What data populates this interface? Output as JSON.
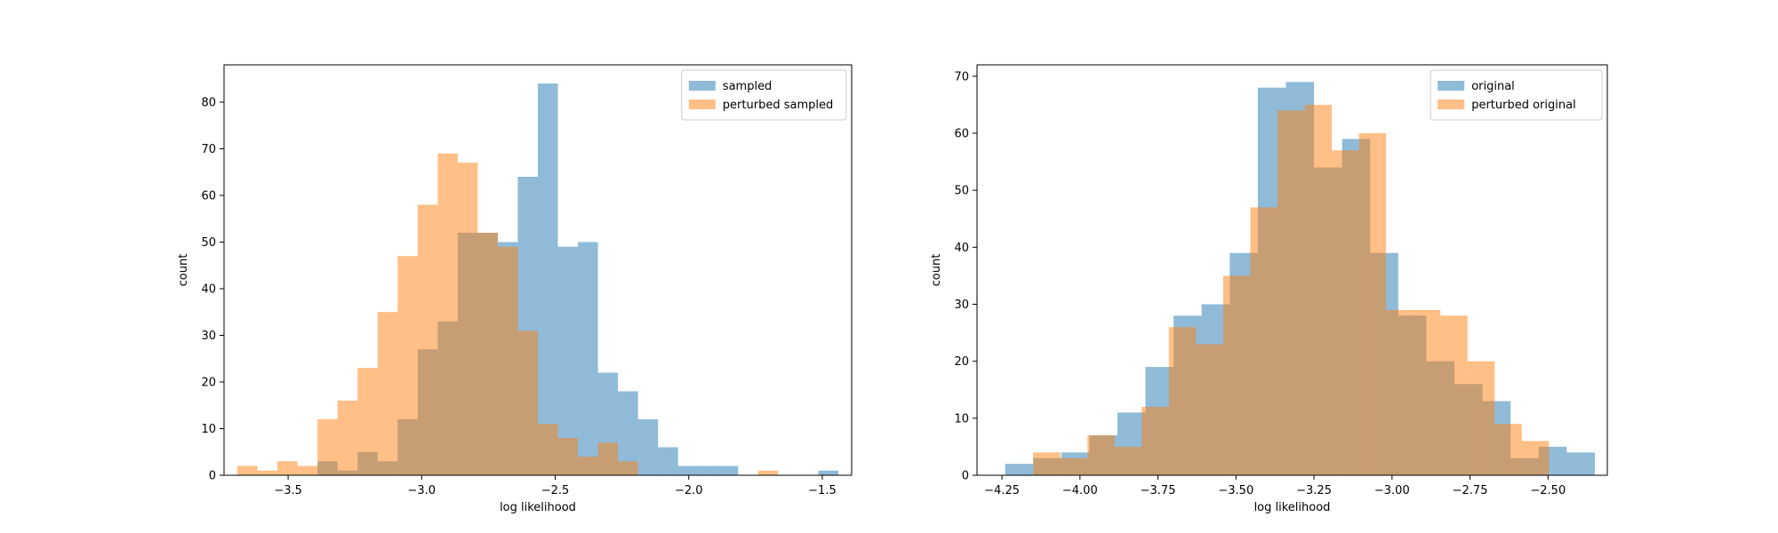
{
  "chart_data": [
    {
      "type": "histogram",
      "xlabel": "log likelihood",
      "ylabel": "count",
      "xlim": [
        -3.74,
        -1.39
      ],
      "ylim": [
        0,
        88
      ],
      "xticks": [
        {
          "v": -3.5,
          "label": "−3.5"
        },
        {
          "v": -3.0,
          "label": "−3.0"
        },
        {
          "v": -2.5,
          "label": "−2.5"
        },
        {
          "v": -2.0,
          "label": "−2.0"
        },
        {
          "v": -1.5,
          "label": "−1.5"
        }
      ],
      "yticks": [
        0,
        10,
        20,
        30,
        40,
        50,
        60,
        70,
        80
      ],
      "legend_position": "top-right",
      "series": [
        {
          "name": "sampled",
          "color": "#1f77b4",
          "alpha": 0.5,
          "bin_edges": [
            -3.39,
            -3.315,
            -3.24,
            -3.165,
            -3.09,
            -3.015,
            -2.94,
            -2.865,
            -2.79,
            -2.715,
            -2.64,
            -2.565,
            -2.49,
            -2.415,
            -2.34,
            -2.265,
            -2.19,
            -2.115,
            -2.04,
            -1.965,
            -1.89,
            -1.815,
            -1.74,
            -1.665,
            -1.59,
            -1.515,
            -1.44
          ],
          "counts": [
            3,
            1,
            5,
            3,
            12,
            27,
            33,
            52,
            52,
            50,
            64,
            84,
            49,
            50,
            22,
            18,
            12,
            6,
            2,
            2,
            2,
            0,
            0,
            0,
            0,
            1
          ]
        },
        {
          "name": "perturbed sampled",
          "color": "#ff7f0e",
          "alpha": 0.5,
          "bin_edges": [
            -3.69,
            -3.615,
            -3.54,
            -3.465,
            -3.39,
            -3.315,
            -3.24,
            -3.165,
            -3.09,
            -3.015,
            -2.94,
            -2.865,
            -2.79,
            -2.715,
            -2.64,
            -2.565,
            -2.49,
            -2.415,
            -2.34,
            -2.265,
            -2.19,
            -2.115,
            -2.04,
            -1.965,
            -1.89,
            -1.815,
            -1.74,
            -1.665
          ],
          "counts": [
            2,
            1,
            3,
            2,
            12,
            16,
            23,
            35,
            47,
            58,
            69,
            67,
            52,
            49,
            31,
            11,
            8,
            4,
            7,
            3,
            0,
            0,
            0,
            0,
            0,
            0,
            1
          ]
        }
      ]
    },
    {
      "type": "histogram",
      "xlabel": "log likelihood",
      "ylabel": "count",
      "xlim": [
        -4.33,
        -2.31
      ],
      "ylim": [
        0,
        72
      ],
      "xticks": [
        {
          "v": -4.25,
          "label": "−4.25"
        },
        {
          "v": -4.0,
          "label": "−4.00"
        },
        {
          "v": -3.75,
          "label": "−3.75"
        },
        {
          "v": -3.5,
          "label": "−3.50"
        },
        {
          "v": -3.25,
          "label": "−3.25"
        },
        {
          "v": -3.0,
          "label": "−3.00"
        },
        {
          "v": -2.75,
          "label": "−2.75"
        },
        {
          "v": -2.5,
          "label": "−2.50"
        }
      ],
      "yticks": [
        0,
        10,
        20,
        30,
        40,
        50,
        60,
        70
      ],
      "legend_position": "top-right",
      "series": [
        {
          "name": "original",
          "color": "#1f77b4",
          "alpha": 0.5,
          "bin_edges": [
            -4.24,
            -4.15,
            -4.06,
            -3.97,
            -3.88,
            -3.79,
            -3.7,
            -3.61,
            -3.52,
            -3.43,
            -3.34,
            -3.25,
            -3.16,
            -3.07,
            -2.98,
            -2.89,
            -2.8,
            -2.71,
            -2.62,
            -2.53,
            -2.44,
            -2.35
          ],
          "counts": [
            2,
            3,
            4,
            7,
            11,
            19,
            28,
            30,
            39,
            68,
            69,
            54,
            59,
            39,
            28,
            20,
            16,
            13,
            3,
            5,
            4
          ]
        },
        {
          "name": "perturbed original",
          "color": "#ff7f0e",
          "alpha": 0.5,
          "bin_edges": [
            -4.15,
            -4.063,
            -3.976,
            -3.889,
            -3.802,
            -3.715,
            -3.628,
            -3.541,
            -3.454,
            -3.367,
            -3.28,
            -3.193,
            -3.106,
            -3.019,
            -2.932,
            -2.845,
            -2.758,
            -2.671,
            -2.584,
            -2.497
          ],
          "counts": [
            4,
            3,
            7,
            5,
            12,
            26,
            23,
            35,
            47,
            64,
            65,
            57,
            60,
            29,
            29,
            28,
            20,
            9,
            6
          ]
        }
      ]
    }
  ]
}
